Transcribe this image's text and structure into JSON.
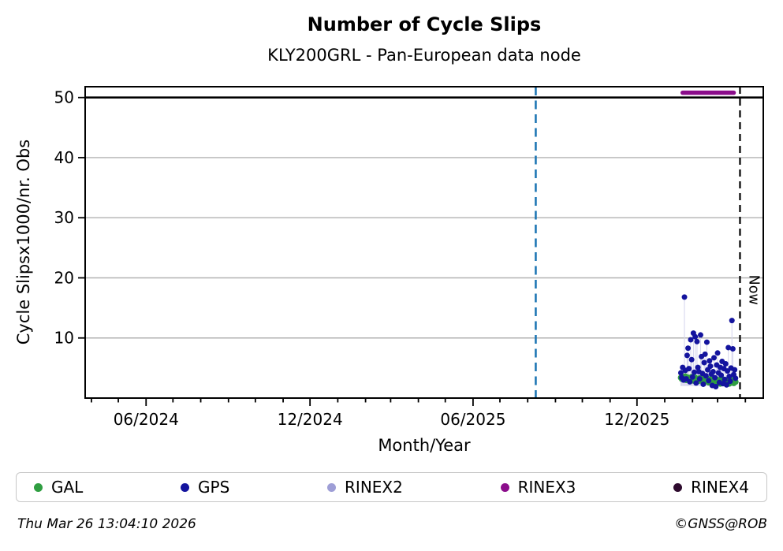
{
  "footer": {
    "timestamp": "Thu Mar 26 13:04:10 2026",
    "copyright": "©GNSS@ROB"
  },
  "chart_data": {
    "type": "scatter",
    "title": "Number of Cycle Slips",
    "subtitle": "KLY200GRL - Pan-European data node",
    "xlabel": "Month/Year",
    "ylabel": "Cycle Slipsx1000/nr. Obs",
    "grid": true,
    "grid_color": "#b2b2b2",
    "x_axis": {
      "start": "2024-03-25",
      "end": "2026-04-21",
      "major_ticks": [
        "2024-06-01",
        "2024-12-01",
        "2025-06-01",
        "2025-12-01"
      ],
      "major_tick_labels": [
        "06/2024",
        "12/2024",
        "06/2025",
        "12/2025"
      ],
      "minor_tick_interval": "month"
    },
    "y_axis": {
      "min": 0,
      "max": 51.8,
      "ticks": [
        10,
        20,
        30,
        40,
        50
      ],
      "tick_labels": [
        "10",
        "20",
        "30",
        "40",
        "50"
      ]
    },
    "hline": {
      "y": 50,
      "color": "#000000"
    },
    "vlines": [
      {
        "date": "2025-08-10",
        "color": "#1f77b4",
        "style": "dashed",
        "label": ""
      },
      {
        "date": "2026-03-26",
        "color": "#000000",
        "style": "dashed",
        "label": "Now"
      }
    ],
    "now_label": "Now",
    "rinex3_segment": {
      "start": "2026-01-21",
      "end": "2026-03-19",
      "value": 50.8,
      "color": "#8b0d8b"
    },
    "stem_color": "#d8d8ee",
    "series": [
      {
        "name": "GAL",
        "color": "#2f9e41",
        "start": "2026-01-19",
        "step_days": 1,
        "values": [
          3.4,
          3.2,
          3.5,
          3.1,
          3.3,
          3.6,
          3.0,
          3.2,
          3.4,
          3.1,
          3.3,
          3.0,
          3.5,
          3.2,
          2.9,
          3.1,
          3.4,
          3.0,
          3.2,
          2.8,
          3.1,
          3.3,
          2.9,
          3.0,
          3.2,
          2.7,
          3.0,
          3.1,
          2.8,
          3.3,
          3.0,
          2.6,
          2.9,
          3.1,
          2.7,
          3.0,
          2.8,
          3.2,
          2.5,
          2.9,
          3.1,
          2.6,
          2.8,
          3.0,
          2.4,
          2.7,
          2.9,
          3.1,
          2.6,
          2.8,
          2.5,
          3.0,
          2.7,
          2.9,
          2.4,
          2.6,
          2.8,
          3.0,
          2.7,
          2.5,
          2.9,
          2.7
        ]
      },
      {
        "name": "GPS",
        "color": "#14149e",
        "start": "2026-01-19",
        "step_days": 1,
        "values": [
          4.2,
          3.4,
          5.1,
          3.0,
          16.8,
          4.6,
          3.2,
          7.1,
          8.3,
          4.9,
          2.7,
          9.7,
          6.4,
          3.5,
          10.8,
          4.3,
          10.2,
          2.5,
          9.4,
          5.1,
          4.4,
          3.2,
          10.5,
          6.9,
          4.1,
          2.3,
          5.9,
          7.3,
          3.7,
          9.3,
          4.7,
          2.9,
          6.2,
          5.3,
          4.0,
          2.1,
          4.4,
          6.7,
          3.4,
          1.9,
          5.5,
          7.5,
          4.2,
          2.6,
          5.1,
          3.8,
          6.1,
          2.4,
          4.9,
          3.1,
          5.7,
          2.2,
          4.5,
          8.4,
          3.6,
          2.8,
          5.0,
          12.9,
          8.2,
          3.9,
          4.7,
          3.3
        ]
      }
    ],
    "legend": {
      "items": [
        {
          "label": "GAL",
          "color": "#2f9e41"
        },
        {
          "label": "GPS",
          "color": "#14149e"
        },
        {
          "label": "RINEX2",
          "color": "#9e9ed6"
        },
        {
          "label": "RINEX3",
          "color": "#8b0d8b"
        },
        {
          "label": "RINEX4",
          "color": "#2e0b2e"
        }
      ]
    }
  }
}
